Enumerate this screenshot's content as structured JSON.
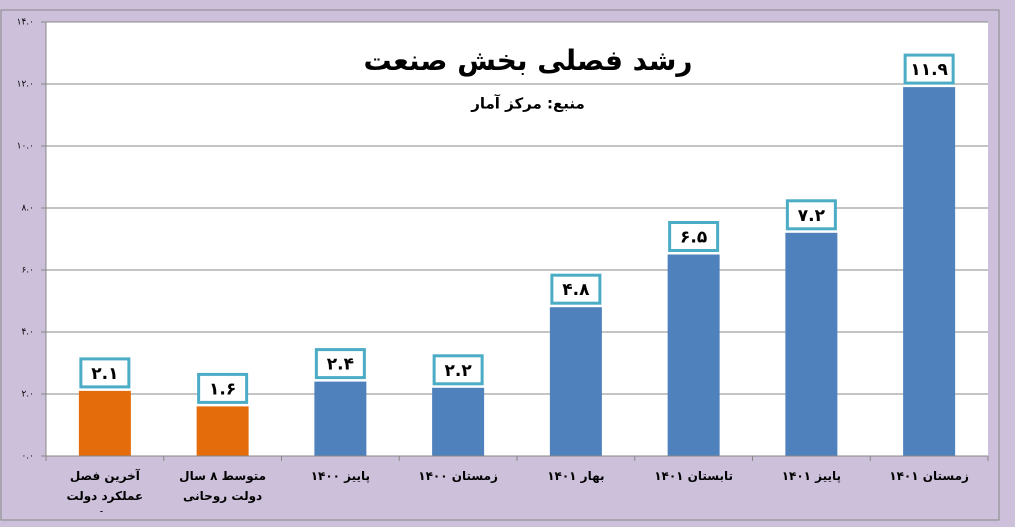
{
  "chart_data": {
    "type": "bar",
    "title": "رشد فصلی بخش صنعت",
    "subtitle": "منبع: مرکز آمار",
    "categories": [
      "آخرین فصل عملکرد دولت روحانی",
      "متوسط ۸ سال دولت روحانی",
      "پاییز ۱۴۰۰",
      "زمستان ۱۴۰۰",
      "بهار ۱۴۰۱",
      "تابستان ۱۴۰۱",
      "پاییز ۱۴۰۱",
      "زمستان ۱۴۰۱"
    ],
    "values": [
      2.1,
      1.6,
      2.4,
      2.2,
      4.8,
      6.5,
      7.2,
      11.9
    ],
    "value_labels": [
      "۲.۱",
      "۱.۶",
      "۲.۴",
      "۲.۲",
      "۴.۸",
      "۶.۵",
      "۷.۲",
      "۱۱.۹"
    ],
    "colors": [
      "#e46c0a",
      "#e46c0a",
      "#4f81bd",
      "#4f81bd",
      "#4f81bd",
      "#4f81bd",
      "#4f81bd",
      "#4f81bd"
    ],
    "ylim": [
      0,
      14
    ],
    "yticks": [
      {
        "value": 0,
        "label": "۰.۰"
      },
      {
        "value": 2,
        "label": "۲.۰"
      },
      {
        "value": 4,
        "label": "۴.۰"
      },
      {
        "value": 6,
        "label": "۶.۰"
      },
      {
        "value": 8,
        "label": "۸.۰"
      },
      {
        "value": 10,
        "label": "۱۰.۰"
      },
      {
        "value": 12,
        "label": "۱۲.۰"
      },
      {
        "value": 14,
        "label": "۱۴.۰"
      }
    ],
    "grid": true
  }
}
